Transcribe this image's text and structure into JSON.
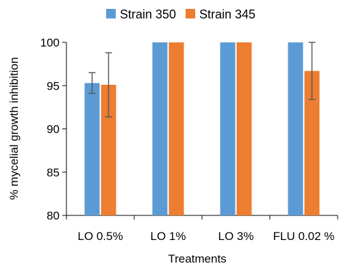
{
  "chart_data": {
    "type": "bar",
    "categories": [
      "LO 0.5%",
      "LO 1%",
      "LO 3%",
      "FLU 0.02 %"
    ],
    "series": [
      {
        "name": "Strain 350",
        "color": "#5b9bd5",
        "values": [
          95.3,
          100,
          100,
          100
        ],
        "errors": [
          1.2,
          0,
          0,
          0
        ]
      },
      {
        "name": "Strain 345",
        "color": "#ed7d31",
        "values": [
          95.1,
          100,
          100,
          96.7
        ],
        "errors": [
          3.7,
          0,
          0,
          3.3
        ]
      }
    ],
    "xlabel": "Treatments",
    "ylabel": "% mycelial growth inhibition",
    "ylim": [
      80,
      100
    ],
    "yticks": [
      80,
      85,
      90,
      95,
      100
    ],
    "legend_position": "top-center",
    "grid": false,
    "error_bar_color": "#595959"
  }
}
